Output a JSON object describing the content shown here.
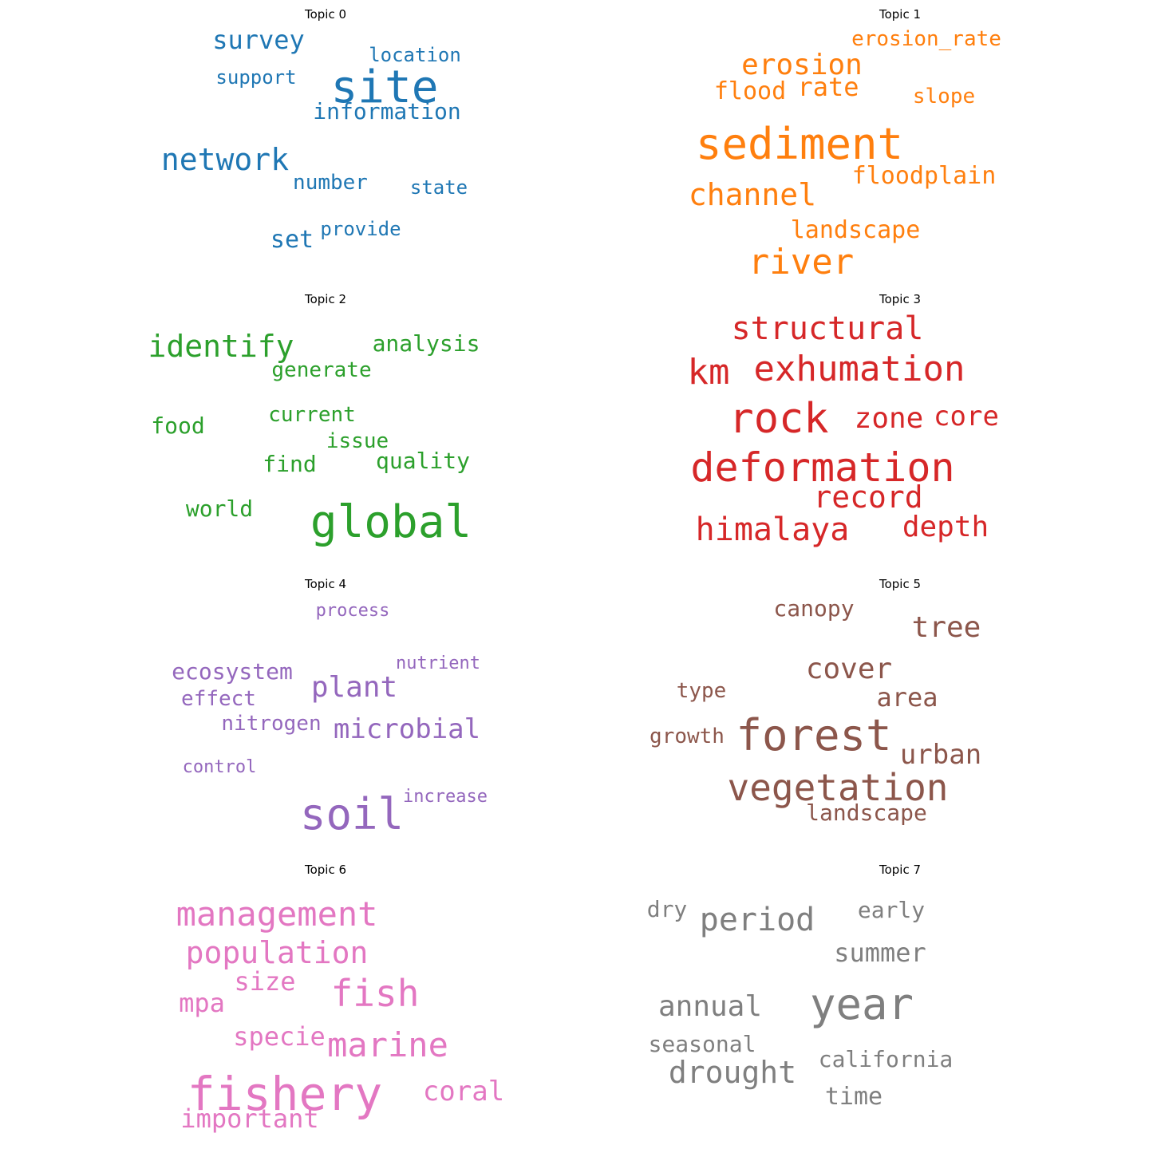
{
  "topics": [
    {
      "title": "Topic 0",
      "color": "#1f77b4",
      "words": [
        "site",
        "network",
        "survey",
        "information",
        "location",
        "support",
        "number",
        "state",
        "set",
        "provide"
      ]
    },
    {
      "title": "Topic 1",
      "color": "#ff7f0e",
      "words": [
        "sediment",
        "river",
        "erosion",
        "channel",
        "rate",
        "flood",
        "floodplain",
        "landscape",
        "erosion_rate",
        "slope"
      ]
    },
    {
      "title": "Topic 2",
      "color": "#2ca02c",
      "words": [
        "global",
        "identify",
        "analysis",
        "generate",
        "food",
        "current",
        "issue",
        "quality",
        "find",
        "world"
      ]
    },
    {
      "title": "Topic 3",
      "color": "#d62728",
      "words": [
        "rock",
        "deformation",
        "exhumation",
        "structural",
        "km",
        "himalaya",
        "record",
        "zone",
        "core",
        "depth"
      ]
    },
    {
      "title": "Topic 4",
      "color": "#9467bd",
      "words": [
        "soil",
        "plant",
        "microbial",
        "ecosystem",
        "effect",
        "nitrogen",
        "nutrient",
        "process",
        "increase",
        "control"
      ]
    },
    {
      "title": "Topic 5",
      "color": "#8c564b",
      "words": [
        "forest",
        "vegetation",
        "cover",
        "tree",
        "urban",
        "area",
        "canopy",
        "type",
        "growth",
        "landscape"
      ]
    },
    {
      "title": "Topic 6",
      "color": "#e377c2",
      "words": [
        "fishery",
        "fish",
        "marine",
        "management",
        "population",
        "coral",
        "size",
        "mpa",
        "specie",
        "important"
      ]
    },
    {
      "title": "Topic 7",
      "color": "#7f7f7f",
      "words": [
        "year",
        "period",
        "drought",
        "annual",
        "summer",
        "early",
        "dry",
        "seasonal",
        "california",
        "time"
      ]
    }
  ]
}
